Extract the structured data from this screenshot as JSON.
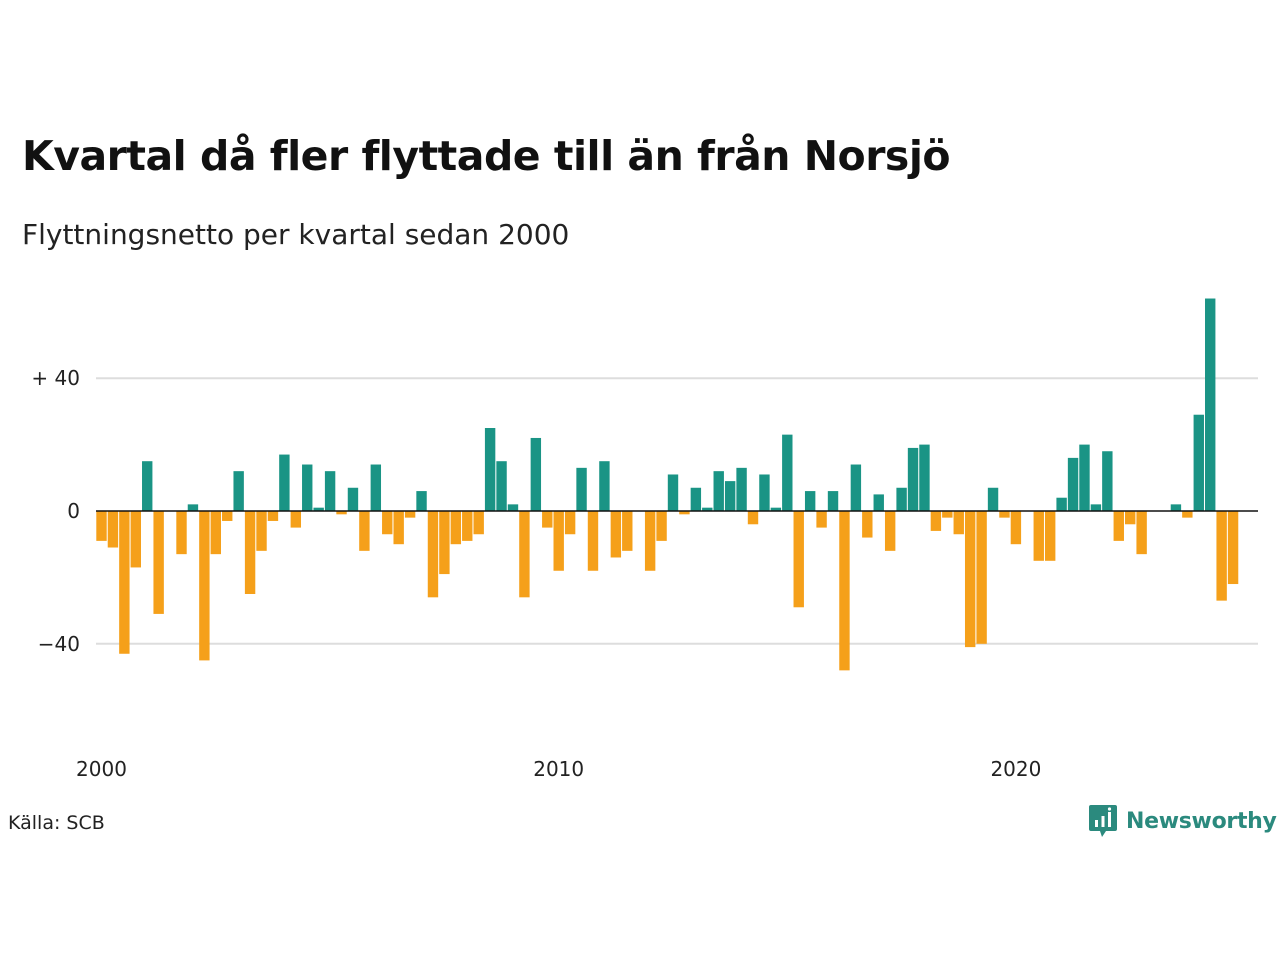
{
  "title": "Kvartal då fler flyttade till än från Norsjö",
  "subtitle": "Flyttningsnetto per kvartal sedan 2000",
  "source": "Källa: SCB",
  "brand": "Newsworthy",
  "colors": {
    "positive": "#1a9485",
    "negative": "#f5a01a",
    "grid": "#dddddd",
    "zero": "#111111",
    "brand": "#2b8a7e"
  },
  "chart_data": {
    "type": "bar",
    "x_start": "2000 Q1",
    "x_ticks": [
      {
        "label": "2000",
        "index": 0
      },
      {
        "label": "2010",
        "index": 40
      },
      {
        "label": "2020",
        "index": 80
      }
    ],
    "y_ticks": [
      {
        "label": "+ 40",
        "value": 40
      },
      {
        "label": "0",
        "value": 0
      },
      {
        "label": "−40",
        "value": -40
      }
    ],
    "ylim": [
      -60,
      64
    ],
    "values": [
      -9,
      -11,
      -43,
      -17,
      15,
      -31,
      0,
      -13,
      2,
      -45,
      -13,
      -3,
      12,
      -25,
      -12,
      -3,
      17,
      -5,
      14,
      1,
      12,
      -1,
      7,
      -12,
      14,
      -7,
      -10,
      -2,
      6,
      -26,
      -19,
      -10,
      -9,
      -7,
      25,
      15,
      2,
      -26,
      22,
      -5,
      -18,
      -7,
      13,
      -18,
      15,
      -14,
      -12,
      0,
      -18,
      -9,
      11,
      -1,
      7,
      1,
      12,
      9,
      13,
      -4,
      11,
      1,
      23,
      -29,
      6,
      -5,
      6,
      -48,
      14,
      -8,
      5,
      -12,
      7,
      19,
      20,
      -6,
      -2,
      -7,
      -41,
      -40,
      7,
      -2,
      -10,
      0,
      -15,
      -15,
      4,
      16,
      20,
      2,
      18,
      -9,
      -4,
      -13,
      0,
      0,
      2,
      -2,
      29,
      64,
      -27,
      -22
    ]
  }
}
